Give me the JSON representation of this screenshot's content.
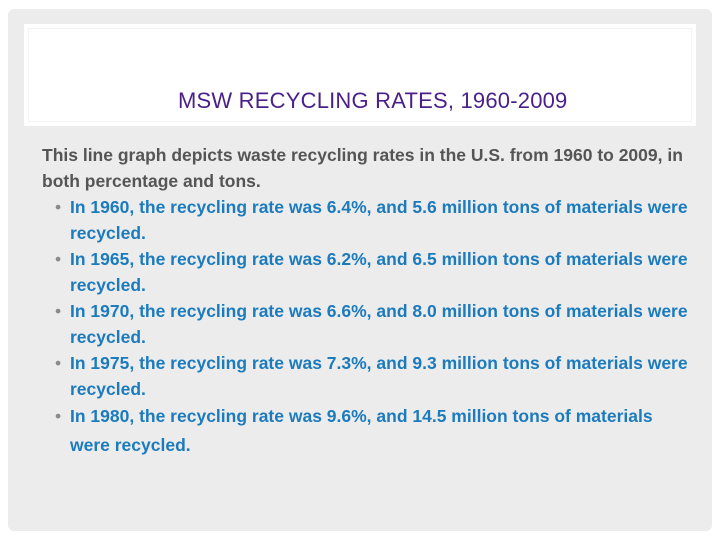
{
  "slide": {
    "title": "MSW RECYCLING RATES, 1960-2009",
    "intro": "This line graph depicts waste recycling rates in the U.S. from 1960 to 2009, in both percentage and tons.",
    "bullets": [
      {
        "text": "In 1960, the recycling rate was 6.4%, and 5.6 million tons of materials were recycled."
      },
      {
        "text": "In 1965, the recycling rate was 6.2%, and 6.5 million tons of materials were recycled."
      },
      {
        "text": "In 1970, the recycling rate was 6.6%, and 8.0 million tons of materials were recycled."
      },
      {
        "text": "In 1975, the recycling rate was 7.3%, and 9.3 million tons of materials were recycled."
      },
      {
        "text": "In 1980, the recycling rate was 9.6%, and 14.5 million tons of materials were recycled."
      }
    ]
  },
  "colors": {
    "title": "#4a1f8a",
    "intro": "#555555",
    "bullet_text": "#1c7bbd",
    "background": "#ececec"
  }
}
